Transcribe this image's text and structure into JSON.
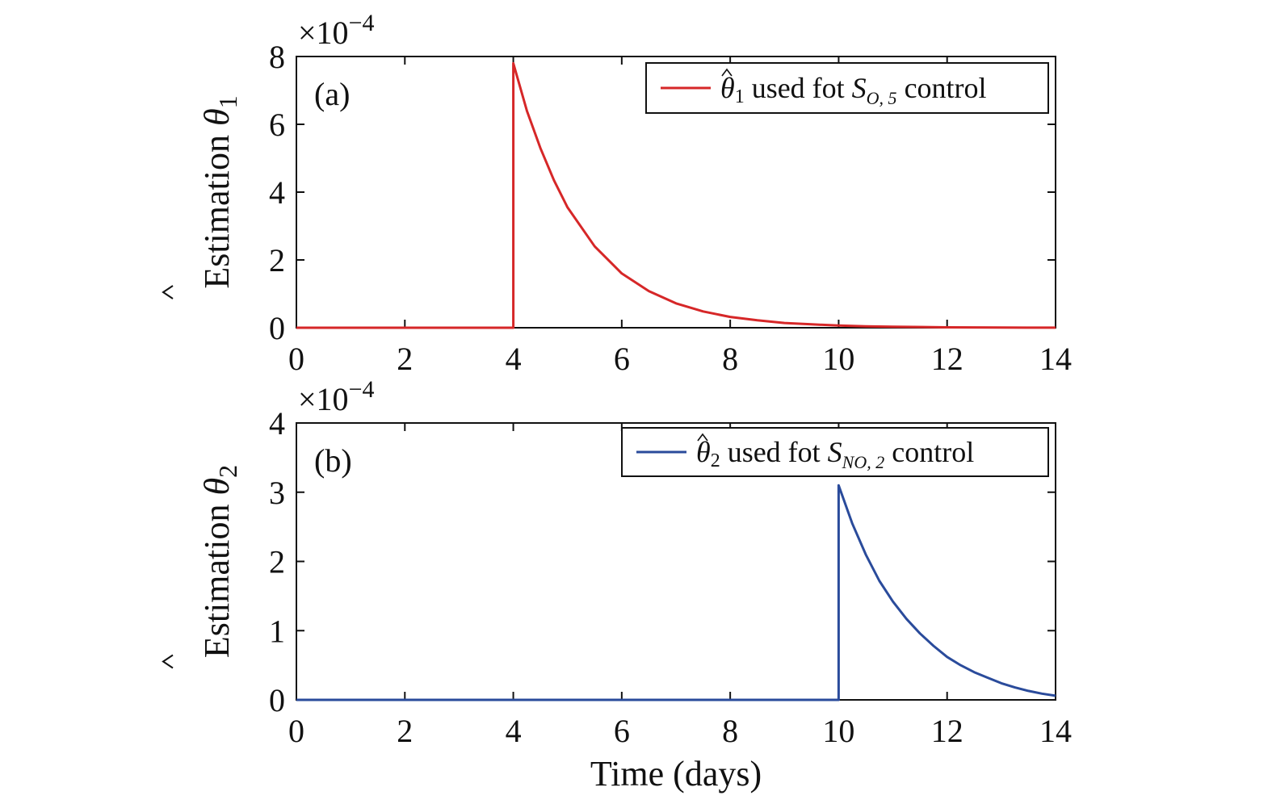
{
  "chart_data": [
    {
      "type": "line",
      "panel_label": "(a)",
      "ylabel_prefix": "Estimation ",
      "ylabel_symbol": "θ",
      "ylabel_sub": "1",
      "scale_factor_label": "×10",
      "scale_factor_exp": "−4",
      "xlim": [
        0,
        14
      ],
      "ylim": [
        0,
        8
      ],
      "xticks": [
        "0",
        "2",
        "4",
        "6",
        "8",
        "10",
        "12",
        "14"
      ],
      "yticks": [
        "0",
        "2",
        "4",
        "6",
        "8"
      ],
      "grid": false,
      "legend_position": "top-right",
      "series": [
        {
          "legend_symbol": "θ",
          "legend_symbol_sub": "1",
          "legend_text": " used fot ",
          "legend_var": "S",
          "legend_var_sub": "O, 5",
          "legend_suffix": " control",
          "color": "#d62728",
          "x": [
            0,
            4,
            4,
            4.25,
            4.5,
            4.75,
            5,
            5.5,
            6,
            6.5,
            7,
            7.5,
            8,
            8.5,
            9,
            9.5,
            10,
            10.5,
            11,
            12,
            13,
            14
          ],
          "y": [
            0,
            0,
            7.8,
            6.4,
            5.3,
            4.35,
            3.55,
            2.4,
            1.6,
            1.08,
            0.72,
            0.48,
            0.32,
            0.22,
            0.14,
            0.1,
            0.065,
            0.04,
            0.03,
            0.012,
            0.005,
            0.002
          ]
        }
      ]
    },
    {
      "type": "line",
      "panel_label": "(b)",
      "ylabel_prefix": "Estimation ",
      "ylabel_symbol": "θ",
      "ylabel_sub": "2",
      "scale_factor_label": "×10",
      "scale_factor_exp": "−4",
      "xlabel": "Time (days)",
      "xlim": [
        0,
        14
      ],
      "ylim": [
        0,
        4
      ],
      "xticks": [
        "0",
        "2",
        "4",
        "6",
        "8",
        "10",
        "12",
        "14"
      ],
      "yticks": [
        "0",
        "1",
        "2",
        "3",
        "4"
      ],
      "grid": false,
      "legend_position": "top-right",
      "series": [
        {
          "legend_symbol": "θ",
          "legend_symbol_sub": "2",
          "legend_text": " used fot ",
          "legend_var": "S",
          "legend_var_sub": "NO, 2",
          "legend_suffix": " control",
          "color": "#2a4b9b",
          "x": [
            0,
            10,
            10,
            10.25,
            10.5,
            10.75,
            11,
            11.25,
            11.5,
            11.75,
            12,
            12.25,
            12.5,
            12.75,
            13,
            13.25,
            13.5,
            13.75,
            14
          ],
          "y": [
            0,
            0,
            3.1,
            2.55,
            2.1,
            1.72,
            1.42,
            1.17,
            0.96,
            0.78,
            0.62,
            0.5,
            0.4,
            0.32,
            0.24,
            0.18,
            0.13,
            0.09,
            0.06
          ]
        }
      ]
    }
  ]
}
